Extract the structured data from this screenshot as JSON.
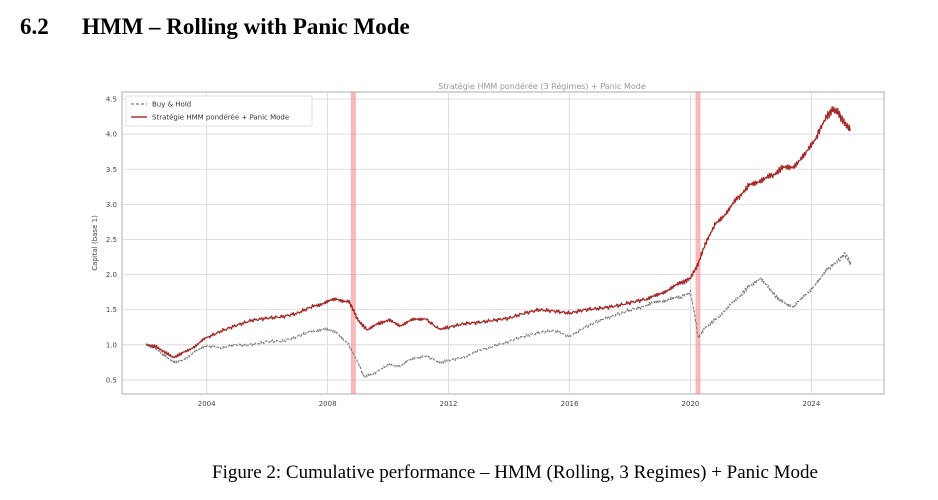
{
  "section": {
    "number": "6.2",
    "title": "HMM – Rolling with Panic Mode"
  },
  "caption": "Figure 2: Cumulative performance – HMM (Rolling, 3 Regimes) + Panic Mode",
  "chart_data": {
    "type": "line",
    "title": "Stratégie HMM pondérée (3 Régimes) + Panic Mode",
    "ylabel": "Capital (base 1)",
    "xlabel": "",
    "xlim": [
      2001.2,
      2026.4
    ],
    "ylim": [
      0.3,
      4.6
    ],
    "xticks": [
      2004,
      2008,
      2012,
      2016,
      2020,
      2024
    ],
    "yticks": [
      0.5,
      1.0,
      1.5,
      2.0,
      2.5,
      3.0,
      3.5,
      4.0,
      4.5
    ],
    "grid": true,
    "legend": "top-left",
    "panic_periods": [
      2008.85,
      2020.25
    ],
    "colors": {
      "buy_hold": "#7a7a7a",
      "strategy": "#a52a2a",
      "panic": "#f08080"
    },
    "series": [
      {
        "name": "Buy & Hold",
        "style": "dashed",
        "x": [
          2002.0,
          2002.3,
          2002.6,
          2002.9,
          2003.2,
          2003.6,
          2004.0,
          2004.5,
          2005.0,
          2005.5,
          2006.0,
          2006.5,
          2007.0,
          2007.5,
          2007.9,
          2008.3,
          2008.7,
          2009.0,
          2009.2,
          2009.5,
          2010.0,
          2010.4,
          2010.8,
          2011.2,
          2011.7,
          2012.0,
          2012.5,
          2013.0,
          2013.5,
          2014.0,
          2014.5,
          2015.0,
          2015.5,
          2016.0,
          2016.5,
          2017.0,
          2017.5,
          2018.0,
          2018.5,
          2018.9,
          2019.3,
          2019.7,
          2020.0,
          2020.15,
          2020.25,
          2020.5,
          2020.8,
          2021.2,
          2021.6,
          2021.9,
          2022.3,
          2022.7,
          2023.0,
          2023.4,
          2023.8,
          2024.2,
          2024.6,
          2024.9,
          2025.1,
          2025.3
        ],
        "y": [
          1.0,
          0.95,
          0.85,
          0.75,
          0.78,
          0.9,
          0.98,
          0.96,
          1.0,
          1.0,
          1.05,
          1.05,
          1.12,
          1.2,
          1.22,
          1.18,
          1.0,
          0.75,
          0.55,
          0.58,
          0.72,
          0.7,
          0.8,
          0.85,
          0.75,
          0.78,
          0.82,
          0.92,
          0.98,
          1.05,
          1.12,
          1.18,
          1.2,
          1.12,
          1.25,
          1.35,
          1.42,
          1.5,
          1.55,
          1.62,
          1.65,
          1.68,
          1.75,
          1.4,
          1.1,
          1.25,
          1.35,
          1.52,
          1.68,
          1.82,
          1.95,
          1.75,
          1.62,
          1.55,
          1.7,
          1.9,
          2.1,
          2.2,
          2.3,
          2.15
        ]
      },
      {
        "name": "Stratégie HMM pondérée + Panic Mode",
        "style": "solid",
        "x": [
          2002.0,
          2002.3,
          2002.6,
          2002.9,
          2003.2,
          2003.6,
          2004.0,
          2004.5,
          2005.0,
          2005.5,
          2006.0,
          2006.5,
          2007.0,
          2007.5,
          2007.9,
          2008.3,
          2008.7,
          2008.85,
          2009.0,
          2009.3,
          2009.7,
          2010.0,
          2010.4,
          2010.8,
          2011.2,
          2011.7,
          2012.0,
          2012.5,
          2013.0,
          2013.5,
          2014.0,
          2014.5,
          2015.0,
          2015.5,
          2016.0,
          2016.5,
          2017.0,
          2017.5,
          2018.0,
          2018.5,
          2018.9,
          2019.3,
          2019.7,
          2020.0,
          2020.25,
          2020.5,
          2020.8,
          2021.2,
          2021.6,
          2021.9,
          2022.3,
          2022.7,
          2023.0,
          2023.4,
          2023.8,
          2024.2,
          2024.5,
          2024.7,
          2024.9,
          2025.1,
          2025.3
        ],
        "y": [
          1.0,
          0.98,
          0.9,
          0.82,
          0.88,
          0.98,
          1.1,
          1.2,
          1.28,
          1.35,
          1.38,
          1.4,
          1.45,
          1.55,
          1.6,
          1.65,
          1.62,
          1.5,
          1.35,
          1.22,
          1.3,
          1.35,
          1.28,
          1.35,
          1.38,
          1.22,
          1.25,
          1.3,
          1.32,
          1.35,
          1.38,
          1.45,
          1.5,
          1.48,
          1.45,
          1.5,
          1.52,
          1.55,
          1.6,
          1.65,
          1.7,
          1.8,
          1.88,
          1.95,
          2.15,
          2.45,
          2.7,
          2.9,
          3.1,
          3.25,
          3.35,
          3.4,
          3.5,
          3.55,
          3.7,
          4.0,
          4.25,
          4.35,
          4.3,
          4.15,
          4.05
        ]
      }
    ]
  }
}
